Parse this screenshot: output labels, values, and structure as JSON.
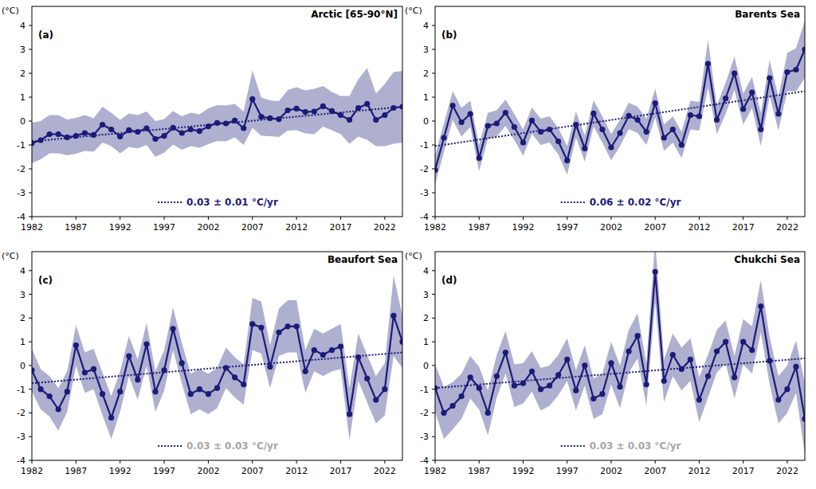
{
  "chart_data": [
    {
      "type": "line",
      "title": "Arctic [65-90°N]",
      "panel_label": "(a)",
      "y_label": "(°C)",
      "x": [
        1982,
        1983,
        1984,
        1985,
        1986,
        1987,
        1988,
        1989,
        1990,
        1991,
        1992,
        1993,
        1994,
        1995,
        1996,
        1997,
        1998,
        1999,
        2000,
        2001,
        2002,
        2003,
        2004,
        2005,
        2006,
        2007,
        2008,
        2009,
        2010,
        2011,
        2012,
        2013,
        2014,
        2015,
        2016,
        2017,
        2018,
        2019,
        2020,
        2021,
        2022,
        2023,
        2024
      ],
      "xlim": [
        1982,
        2024
      ],
      "xticks": [
        1982,
        1987,
        1992,
        1997,
        2002,
        2007,
        2012,
        2017,
        2022
      ],
      "ylim": [
        -4,
        4.8
      ],
      "yticks": [
        -4,
        -3,
        -2,
        -1,
        0,
        1,
        2,
        3,
        4
      ],
      "series": [
        {
          "color": "#1b1b78",
          "marker": "circle",
          "values": [
            -0.92,
            -0.8,
            -0.55,
            -0.55,
            -0.68,
            -0.62,
            -0.5,
            -0.58,
            -0.15,
            -0.35,
            -0.65,
            -0.38,
            -0.45,
            -0.3,
            -0.75,
            -0.62,
            -0.28,
            -0.5,
            -0.35,
            -0.42,
            -0.22,
            -0.08,
            -0.1,
            0.02,
            -0.3,
            0.92,
            0.18,
            0.12,
            0.08,
            0.45,
            0.52,
            0.38,
            0.4,
            0.62,
            0.42,
            0.25,
            0.05,
            0.55,
            0.72,
            0.05,
            0.25,
            0.55,
            0.6
          ],
          "error": [
            0.85,
            0.8,
            0.8,
            0.8,
            0.75,
            0.75,
            0.75,
            0.7,
            0.75,
            0.7,
            0.7,
            0.7,
            0.7,
            0.7,
            0.75,
            0.7,
            0.7,
            0.7,
            0.7,
            0.7,
            0.75,
            0.75,
            0.75,
            0.7,
            0.7,
            1.2,
            0.8,
            0.75,
            0.75,
            0.85,
            0.9,
            0.9,
            0.95,
            0.85,
            0.8,
            0.8,
            1.0,
            1.2,
            1.5,
            1.1,
            1.3,
            1.5,
            1.5
          ]
        }
      ],
      "trend": {
        "label": "0.03 ± 0.01 °C/yr",
        "color": "#1b1b78",
        "line_style": "dotted",
        "x": [
          1982,
          2024
        ],
        "values": [
          -0.85,
          0.6
        ]
      }
    },
    {
      "type": "line",
      "title": "Barents Sea",
      "panel_label": "(b)",
      "y_label": "(°C)",
      "x": [
        1982,
        1983,
        1984,
        1985,
        1986,
        1987,
        1988,
        1989,
        1990,
        1991,
        1992,
        1993,
        1994,
        1995,
        1996,
        1997,
        1998,
        1999,
        2000,
        2001,
        2002,
        2003,
        2004,
        2005,
        2006,
        2007,
        2008,
        2009,
        2010,
        2011,
        2012,
        2013,
        2014,
        2015,
        2016,
        2017,
        2018,
        2019,
        2020,
        2021,
        2022,
        2023,
        2024
      ],
      "xlim": [
        1982,
        2024
      ],
      "xticks": [
        1982,
        1987,
        1992,
        1997,
        2002,
        2007,
        2012,
        2017,
        2022
      ],
      "ylim": [
        -4,
        4.8
      ],
      "yticks": [
        -4,
        -3,
        -2,
        -1,
        0,
        1,
        2,
        3,
        4
      ],
      "series": [
        {
          "color": "#1b1b78",
          "marker": "circle",
          "values": [
            -2.05,
            -0.7,
            0.65,
            -0.05,
            0.3,
            -1.55,
            -0.2,
            -0.1,
            0.35,
            -0.25,
            -0.9,
            0.02,
            -0.45,
            -0.35,
            -0.85,
            -1.65,
            -0.15,
            -1.15,
            0.32,
            -0.35,
            -1.1,
            -0.5,
            0.22,
            0.05,
            -0.45,
            0.75,
            -0.7,
            -0.35,
            -1.0,
            0.25,
            0.2,
            2.4,
            0.05,
            0.95,
            2.0,
            0.5,
            1.2,
            -0.35,
            1.8,
            0.3,
            2.05,
            2.15,
            3.0
          ],
          "error": [
            0.6,
            0.6,
            0.6,
            0.6,
            0.55,
            0.55,
            0.55,
            0.55,
            0.55,
            0.55,
            0.55,
            0.55,
            0.55,
            0.55,
            0.55,
            0.6,
            0.55,
            0.55,
            0.55,
            0.55,
            0.55,
            0.55,
            0.55,
            0.55,
            0.55,
            0.6,
            0.55,
            0.55,
            0.55,
            0.6,
            0.6,
            1.0,
            0.6,
            0.65,
            0.7,
            0.65,
            0.65,
            0.7,
            0.75,
            0.7,
            0.8,
            0.9,
            1.2
          ]
        }
      ],
      "trend": {
        "label": "0.06 ± 0.02 °C/yr",
        "color": "#1b1b78",
        "line_style": "dotted",
        "x": [
          1982,
          2024
        ],
        "values": [
          -1.05,
          1.25
        ]
      }
    },
    {
      "type": "line",
      "title": "Beaufort Sea",
      "panel_label": "(c)",
      "y_label": "(°C)",
      "x": [
        1982,
        1983,
        1984,
        1985,
        1986,
        1987,
        1988,
        1989,
        1990,
        1991,
        1992,
        1993,
        1994,
        1995,
        1996,
        1997,
        1998,
        1999,
        2000,
        2001,
        2002,
        2003,
        2004,
        2005,
        2006,
        2007,
        2008,
        2009,
        2010,
        2011,
        2012,
        2013,
        2014,
        2015,
        2016,
        2017,
        2018,
        2019,
        2020,
        2021,
        2022,
        2023,
        2024
      ],
      "xlim": [
        1982,
        2024
      ],
      "xticks": [
        1982,
        1987,
        1992,
        1997,
        2002,
        2007,
        2012,
        2017,
        2022
      ],
      "ylim": [
        -4,
        4.8
      ],
      "yticks": [
        -4,
        -3,
        -2,
        -1,
        0,
        1,
        2,
        3,
        4
      ],
      "series": [
        {
          "color": "#1b1b78",
          "marker": "circle",
          "values": [
            -0.2,
            -1.0,
            -1.3,
            -1.85,
            -1.1,
            0.85,
            -0.3,
            -0.15,
            -1.2,
            -2.2,
            -1.1,
            0.4,
            -0.6,
            0.9,
            -1.1,
            -0.2,
            1.55,
            0.1,
            -1.2,
            -1.0,
            -1.2,
            -0.95,
            -0.1,
            -0.5,
            -0.8,
            1.75,
            1.6,
            -0.05,
            1.4,
            1.65,
            1.65,
            -0.25,
            0.65,
            0.45,
            0.65,
            0.8,
            -2.05,
            0.35,
            -0.55,
            -1.45,
            -1.0,
            2.1,
            1.0
          ],
          "error": [
            0.9,
            0.85,
            0.85,
            0.9,
            0.85,
            0.85,
            0.85,
            0.85,
            0.9,
            0.9,
            0.85,
            0.85,
            0.85,
            0.9,
            0.85,
            0.85,
            0.9,
            0.85,
            0.85,
            0.85,
            0.85,
            0.85,
            0.85,
            0.85,
            0.85,
            1.1,
            1.1,
            0.9,
            1.0,
            1.1,
            1.1,
            0.9,
            0.9,
            0.9,
            0.9,
            0.95,
            1.1,
            1.0,
            1.0,
            1.0,
            1.1,
            1.7,
            1.1
          ]
        }
      ],
      "trend": {
        "label": "0.03 ± 0.03 °C/yr",
        "color": "#a6a6a6",
        "line_style": "dotted",
        "x": [
          1982,
          2024
        ],
        "values": [
          -0.75,
          0.55
        ]
      }
    },
    {
      "type": "line",
      "title": "Chukchi Sea",
      "panel_label": "(d)",
      "y_label": "(°C)",
      "x": [
        1982,
        1983,
        1984,
        1985,
        1986,
        1987,
        1988,
        1989,
        1990,
        1991,
        1992,
        1993,
        1994,
        1995,
        1996,
        1997,
        1998,
        1999,
        2000,
        2001,
        2002,
        2003,
        2004,
        2005,
        2006,
        2007,
        2008,
        2009,
        2010,
        2011,
        2012,
        2013,
        2014,
        2015,
        2016,
        2017,
        2018,
        2019,
        2020,
        2021,
        2022,
        2023,
        2024
      ],
      "xlim": [
        1982,
        2024
      ],
      "xticks": [
        1982,
        1987,
        1992,
        1997,
        2002,
        2007,
        2012,
        2017,
        2022
      ],
      "ylim": [
        -4,
        4.8
      ],
      "yticks": [
        -4,
        -3,
        -2,
        -1,
        0,
        1,
        2,
        3,
        4
      ],
      "series": [
        {
          "color": "#1b1b78",
          "marker": "circle",
          "values": [
            -0.95,
            -2.0,
            -1.7,
            -1.3,
            -0.5,
            -0.95,
            -2.0,
            -0.45,
            0.55,
            -0.85,
            -0.75,
            -0.25,
            -1.0,
            -0.85,
            -0.4,
            0.25,
            -1.05,
            0.0,
            -1.4,
            -1.2,
            0.1,
            -0.9,
            0.6,
            1.25,
            -0.8,
            3.95,
            -0.65,
            0.45,
            -0.15,
            0.25,
            -1.45,
            -0.45,
            0.6,
            1.0,
            -0.5,
            1.0,
            0.65,
            2.5,
            0.2,
            -1.45,
            -1.0,
            -0.05,
            -2.25
          ],
          "error": [
            1.0,
            1.1,
            1.0,
            0.95,
            0.9,
            0.9,
            0.95,
            0.9,
            0.9,
            0.9,
            0.85,
            0.85,
            0.9,
            0.85,
            0.85,
            0.9,
            0.85,
            0.85,
            0.85,
            0.85,
            0.9,
            0.9,
            0.9,
            0.95,
            0.9,
            1.3,
            0.9,
            0.9,
            0.9,
            0.9,
            0.95,
            0.9,
            0.9,
            0.9,
            0.9,
            0.95,
            1.0,
            1.1,
            1.0,
            1.0,
            1.0,
            1.1,
            1.5
          ]
        }
      ],
      "trend": {
        "label": "0.03 ± 0.03 °C/yr",
        "color": "#a6a6a6",
        "line_style": "dotted",
        "x": [
          1982,
          2024
        ],
        "values": [
          -0.95,
          0.3
        ]
      }
    }
  ]
}
